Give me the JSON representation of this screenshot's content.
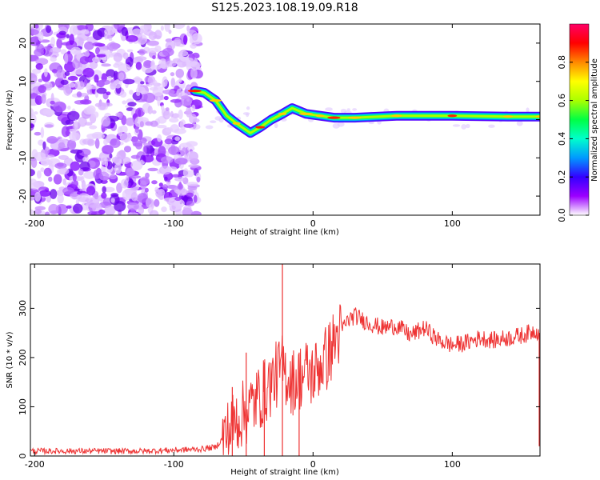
{
  "title": "S125.2023.108.19.09.R18",
  "chart_data": [
    {
      "type": "heatmap",
      "xlabel": "Height of straight line (km)",
      "ylabel": "Frequency (Hz)",
      "xlim": [
        -203,
        163
      ],
      "ylim": [
        -25,
        25
      ],
      "xticks": [
        -200,
        -100,
        0,
        100
      ],
      "yticks": [
        -20,
        -10,
        0,
        10,
        20
      ],
      "colorbar": {
        "label": "Normalized spectral amplitude",
        "range": [
          0,
          1
        ],
        "ticks": [
          "0.0",
          "0.2",
          "0.4",
          "0.6",
          "0.8"
        ],
        "colors": [
          "#ffffff",
          "#9b00ff",
          "#3300ff",
          "#0099ff",
          "#00ffcc",
          "#00ff44",
          "#aaff00",
          "#ffff00",
          "#ff8800",
          "#ff0000",
          "#ff0066"
        ]
      },
      "track": [
        {
          "x": -85,
          "y": 7.5
        },
        {
          "x": -78,
          "y": 7.0
        },
        {
          "x": -70,
          "y": 5.0
        },
        {
          "x": -62,
          "y": 1.0
        },
        {
          "x": -55,
          "y": -1.0
        },
        {
          "x": -45,
          "y": -3.5
        },
        {
          "x": -38,
          "y": -2.0
        },
        {
          "x": -30,
          "y": 0.0
        },
        {
          "x": -22,
          "y": 1.5
        },
        {
          "x": -15,
          "y": 3.0
        },
        {
          "x": -5,
          "y": 1.5
        },
        {
          "x": 5,
          "y": 1.0
        },
        {
          "x": 15,
          "y": 0.5
        },
        {
          "x": 30,
          "y": 0.5
        },
        {
          "x": 60,
          "y": 1.0
        },
        {
          "x": 100,
          "y": 1.0
        },
        {
          "x": 140,
          "y": 0.8
        },
        {
          "x": 163,
          "y": 0.8
        }
      ],
      "noise_region": {
        "x": [
          -203,
          -82
        ],
        "y": [
          -25,
          25
        ]
      }
    },
    {
      "type": "line",
      "xlabel": "Height of straight line (km)",
      "ylabel": "SNR (10 * v/v)",
      "xlim": [
        -203,
        163
      ],
      "ylim": [
        0,
        390
      ],
      "xticks": [
        -200,
        -100,
        0,
        100
      ],
      "yticks": [
        0,
        100,
        200,
        300
      ],
      "series": [
        {
          "color": "#ee3333",
          "x": [
            -203,
            -180,
            -150,
            -120,
            -100,
            -80,
            -70,
            -62,
            -55,
            -48,
            -42,
            -35,
            -30,
            -25,
            -22,
            -20,
            -15,
            -10,
            -5,
            0,
            5,
            10,
            15,
            20,
            25,
            30,
            40,
            50,
            60,
            70,
            80,
            90,
            100,
            110,
            120,
            130,
            140,
            150,
            160,
            163
          ],
          "y": [
            10,
            10,
            10,
            10,
            12,
            14,
            18,
            45,
            75,
            90,
            110,
            130,
            150,
            170,
            180,
            170,
            150,
            160,
            170,
            165,
            185,
            200,
            230,
            255,
            275,
            285,
            270,
            260,
            265,
            245,
            260,
            235,
            225,
            230,
            240,
            235,
            240,
            245,
            255,
            250
          ]
        }
      ],
      "spikes": [
        {
          "x": -22,
          "y": 390
        },
        {
          "x": -58,
          "y": 140
        },
        {
          "x": -48,
          "y": 210
        },
        {
          "x": -35,
          "y": 190
        },
        {
          "x": -10,
          "y": 210
        }
      ]
    }
  ]
}
